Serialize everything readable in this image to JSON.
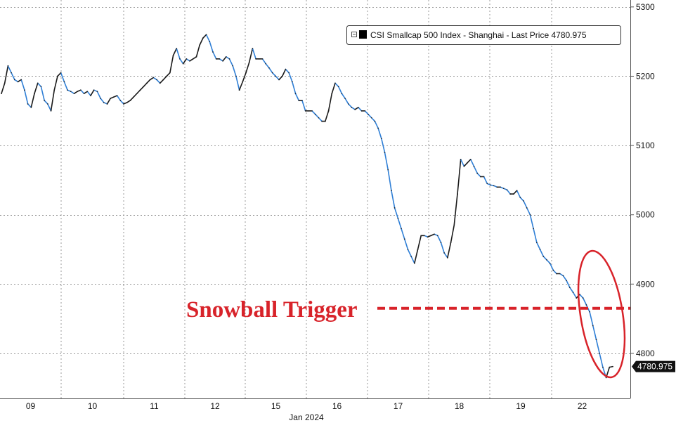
{
  "chart_data": {
    "type": "line",
    "series": [
      {
        "name": "CSI Smallcap 500 Index - Shanghai - Last Price",
        "last_price": "4780.975",
        "values": [
          5175,
          5190,
          5215,
          5205,
          5195,
          5192,
          5195,
          5180,
          5160,
          5155,
          5175,
          5190,
          5185,
          5165,
          5160,
          5150,
          5180,
          5200,
          5205,
          5192,
          5180,
          5178,
          5175,
          5178,
          5180,
          5175,
          5178,
          5172,
          5180,
          5178,
          5168,
          5162,
          5160,
          5168,
          5170,
          5172,
          5165,
          5160,
          5162,
          5165,
          5170,
          5175,
          5180,
          5185,
          5190,
          5195,
          5198,
          5195,
          5190,
          5195,
          5200,
          5205,
          5230,
          5240,
          5225,
          5218,
          5225,
          5222,
          5225,
          5228,
          5245,
          5255,
          5260,
          5250,
          5235,
          5225,
          5225,
          5222,
          5228,
          5225,
          5215,
          5200,
          5180,
          5192,
          5205,
          5220,
          5240,
          5225,
          5225,
          5225,
          5218,
          5212,
          5205,
          5200,
          5195,
          5200,
          5210,
          5205,
          5192,
          5175,
          5165,
          5165,
          5150,
          5150,
          5150,
          5145,
          5140,
          5135,
          5135,
          5150,
          5175,
          5190,
          5185,
          5175,
          5168,
          5160,
          5155,
          5152,
          5155,
          5150,
          5150,
          5145,
          5140,
          5135,
          5125,
          5110,
          5090,
          5065,
          5035,
          5010,
          4995,
          4980,
          4965,
          4950,
          4940,
          4930,
          4950,
          4970,
          4970,
          4968,
          4970,
          4972,
          4970,
          4960,
          4945,
          4938,
          4960,
          4985,
          5030,
          5080,
          5070,
          5075,
          5080,
          5070,
          5060,
          5055,
          5055,
          5045,
          5043,
          5042,
          5040,
          5040,
          5038,
          5036,
          5030,
          5030,
          5035,
          5025,
          5020,
          5010,
          5000,
          4980,
          4960,
          4950,
          4940,
          4935,
          4930,
          4920,
          4915,
          4915,
          4912,
          4905,
          4895,
          4888,
          4880,
          4885,
          4880,
          4870,
          4860,
          4840,
          4820,
          4800,
          4780,
          4765,
          4780,
          4781
        ]
      }
    ],
    "x_tick_labels": [
      "09",
      "10",
      "11",
      "12",
      "15",
      "16",
      "17",
      "18",
      "19",
      "22"
    ],
    "x_title": "Jan 2024",
    "y_ticks": [
      4800,
      4900,
      5000,
      5100,
      5200,
      5300
    ],
    "ylim": [
      4735,
      5310
    ],
    "trigger_level": 4865,
    "grid": true,
    "legend_position": "top-right"
  },
  "annotation": {
    "trigger_label": "Snowball Trigger"
  },
  "colors": {
    "up_line": "#1a1a1a",
    "down_line": "#2f7fd6",
    "trigger": "#d8232a",
    "grid": "#999999",
    "price_tag_bg": "#111111"
  }
}
